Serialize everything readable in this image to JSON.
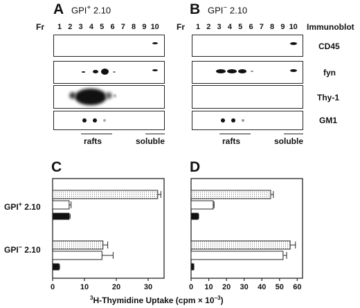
{
  "blots": {
    "fr_label": "Fr",
    "immunoblot_label": "Immunoblot",
    "lanes": [
      "1",
      "2",
      "3",
      "4",
      "5",
      "6",
      "7",
      "8",
      "9",
      "10"
    ],
    "rows": [
      "CD45",
      "fyn",
      "Thy-1",
      "GM1"
    ],
    "rafts_label": "rafts",
    "soluble_label": "soluble",
    "panel_A": {
      "letter": "A",
      "cond_prefix": "GPI",
      "cond_sup": "+",
      "cond_suffix": " 2.10"
    },
    "panel_B": {
      "letter": "B",
      "cond_prefix": "GPI",
      "cond_sup": "−",
      "cond_suffix": " 2.10"
    }
  },
  "charts": {
    "panel_C": {
      "letter": "C"
    },
    "panel_D": {
      "letter": "D"
    },
    "row_labels": [
      {
        "prefix": "GPI",
        "sup": "+",
        "suffix": " 2.10"
      },
      {
        "prefix": "GPI",
        "sup": "−",
        "suffix": " 2.10"
      }
    ],
    "axis_title_pre": "H-Thymidine Uptake  (cpm × 10",
    "axis_title_sup_left": "3",
    "axis_title_exp": "−3",
    "axis_title_post": ")"
  },
  "chart_data": [
    {
      "type": "bar",
      "panel": "C",
      "orientation": "horizontal",
      "categories": [
        "GPI+ 2.10",
        "GPI− 2.10"
      ],
      "series": [
        {
          "fill": "dotted",
          "values": [
            33,
            15.8
          ],
          "errors": [
            1,
            1.5
          ]
        },
        {
          "fill": "open",
          "values": [
            5.2,
            15.5
          ],
          "errors": [
            0.6,
            3.5
          ]
        },
        {
          "fill": "solid",
          "values": [
            5.2,
            2.0
          ],
          "errors": [
            0.3,
            0.2
          ]
        }
      ],
      "xlim": [
        0,
        35
      ],
      "xticks": [
        0,
        10,
        20,
        30
      ]
    },
    {
      "type": "bar",
      "panel": "D",
      "orientation": "horizontal",
      "categories": [
        "GPI+ 2.10",
        "GPI− 2.10"
      ],
      "series": [
        {
          "fill": "dotted",
          "values": [
            45,
            56
          ],
          "errors": [
            1.5,
            3
          ]
        },
        {
          "fill": "open",
          "values": [
            12.5,
            52
          ],
          "errors": [
            0.5,
            2
          ]
        },
        {
          "fill": "solid",
          "values": [
            4,
            1.5
          ],
          "errors": [
            0.3,
            0.1
          ]
        }
      ],
      "xlim": [
        0,
        63
      ],
      "xticks": [
        0,
        10,
        20,
        30,
        40,
        50,
        60
      ]
    }
  ]
}
